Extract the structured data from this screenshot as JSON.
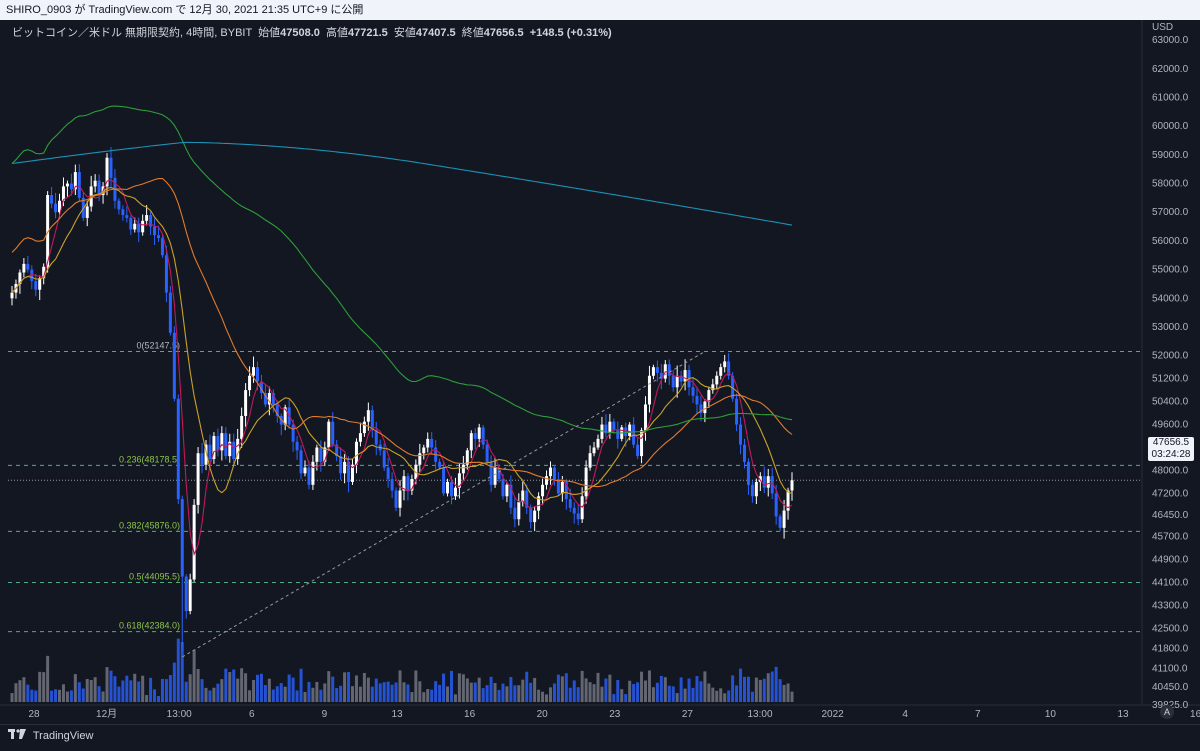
{
  "header": {
    "title": "SHIRO_0903 が TradingView.com で 12月 30, 2021 21:35 UTC+9 に公開"
  },
  "legend": {
    "symbol": "ビットコイン／米ドル 無期限契約, 4時間, BYBIT",
    "open_label": "始値",
    "open": "47508.0",
    "high_label": "高値",
    "high": "47721.5",
    "low_label": "安値",
    "low": "47407.5",
    "close_label": "終値",
    "close": "47656.5",
    "change": "+148.5 (+0.31%)"
  },
  "currency": "USD",
  "last_price": {
    "value": "47656.5",
    "countdown": "03:24:28"
  },
  "footer": {
    "brand": "TradingView"
  },
  "auto_button": "A",
  "colors": {
    "background": "#131722",
    "up_candle": "#ffffff",
    "down_candle": "#2962ff",
    "fib_line": "#4caf84",
    "ma_red": "#c2185b",
    "ma_yellow": "#c9a227",
    "ma_orange": "#e07b2a",
    "ma_green": "#2e9c3a",
    "ma_cyan": "#1e90b4"
  },
  "chart_data": {
    "type": "candlestick",
    "y_axis": {
      "range": [
        39825,
        63700
      ],
      "tick_labels": [
        "63000.0",
        "62000.0",
        "61000.0",
        "60000.0",
        "59000.0",
        "58000.0",
        "57000.0",
        "56000.0",
        "55000.0",
        "54000.0",
        "53000.0",
        "52000.0",
        "51200.0",
        "50400.0",
        "49600.0",
        "48800.0",
        "48000.0",
        "47200.0",
        "46450.0",
        "45700.0",
        "44900.0",
        "44100.0",
        "43300.0",
        "42500.0",
        "41800.0",
        "41100.0",
        "40450.0",
        "39825.0"
      ]
    },
    "x_axis": {
      "tick_labels": [
        "28",
        "12月",
        "13:00",
        "6",
        "9",
        "13",
        "16",
        "20",
        "23",
        "27",
        "13:00",
        "2022",
        "4",
        "7",
        "10",
        "13",
        "16"
      ]
    },
    "fib_levels": [
      {
        "label": "0(52147.5)",
        "price": 52147.5
      },
      {
        "label": "0.236(48178.5)",
        "price": 48178.5
      },
      {
        "label": "0.382(45876.0)",
        "price": 45876.0
      },
      {
        "label": "0.5(44095.5)",
        "price": 44095.5
      },
      {
        "label": "0.618(42384.0)",
        "price": 42384.0
      }
    ],
    "last_price": 47656.5,
    "closes": [
      54200,
      54500,
      54900,
      55200,
      55000,
      54600,
      54300,
      54700,
      55100,
      57600,
      57300,
      57000,
      57400,
      57900,
      58000,
      57800,
      58400,
      57500,
      56800,
      57200,
      57900,
      58100,
      57600,
      57900,
      58900,
      58200,
      57400,
      57100,
      56900,
      56800,
      56400,
      56600,
      56300,
      56700,
      56900,
      56500,
      56200,
      56100,
      55500,
      54200,
      52800,
      50500,
      47000,
      44300,
      43100,
      44200,
      46800,
      48600,
      48200,
      48900,
      48400,
      49200,
      48700,
      49300,
      48500,
      49000,
      48400,
      49100,
      49900,
      50800,
      51300,
      51600,
      51100,
      50700,
      50300,
      50700,
      50300,
      49900,
      49600,
      50200,
      49600,
      49000,
      48700,
      47900,
      48100,
      47500,
      48300,
      48800,
      48300,
      48800,
      49700,
      48900,
      48500,
      47900,
      48300,
      47600,
      48200,
      49000,
      49300,
      49700,
      50100,
      49400,
      48900,
      48700,
      48100,
      47700,
      47300,
      46700,
      47300,
      47800,
      47300,
      47700,
      48200,
      48600,
      48800,
      49100,
      48800,
      48300,
      48100,
      47200,
      47600,
      47100,
      47400,
      47900,
      48200,
      48700,
      49300,
      49100,
      49500,
      48900,
      48300,
      47500,
      48100,
      47700,
      47100,
      47500,
      46700,
      46300,
      46900,
      47300,
      46700,
      46200,
      46600,
      47100,
      47500,
      47800,
      48100,
      47700,
      47200,
      47600,
      47000,
      46700,
      46500,
      46300,
      47100,
      48100,
      48600,
      48800,
      49100,
      49600,
      49300,
      49700,
      49400,
      49100,
      49500,
      49200,
      49600,
      48900,
      48500,
      49400,
      50300,
      51300,
      51600,
      51400,
      51200,
      51700,
      51300,
      50900,
      51300,
      51100,
      51500,
      50900,
      50600,
      50300,
      50000,
      50400,
      50800,
      51000,
      51300,
      51600,
      51800,
      51300,
      50500,
      49600,
      48900,
      48300,
      47500,
      47100,
      47600,
      47800,
      47400,
      47800,
      47200,
      46400,
      46000,
      46600,
      47300,
      47656.5
    ],
    "volume_max": 1200
  }
}
